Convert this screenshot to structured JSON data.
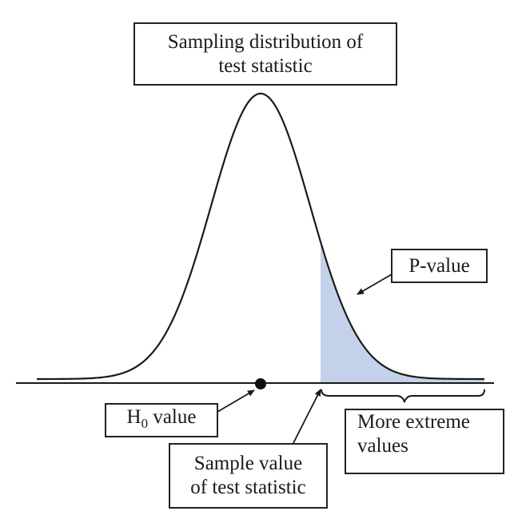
{
  "labels": {
    "title_line1": "Sampling distribution of",
    "title_line2": "test statistic",
    "p_value": "P-value",
    "h0_prefix": "H",
    "h0_subscript": "0",
    "h0_suffix": " value",
    "sample_line1": "Sample value",
    "sample_line2": "of test statistic",
    "extreme_line1": "More extreme",
    "extreme_line2": "values"
  },
  "colors": {
    "curve": "#1a1a1a",
    "shaded_tail": "#c3d1ea",
    "baseline": "#1a1a1a",
    "h0_dot": "#111111"
  }
}
